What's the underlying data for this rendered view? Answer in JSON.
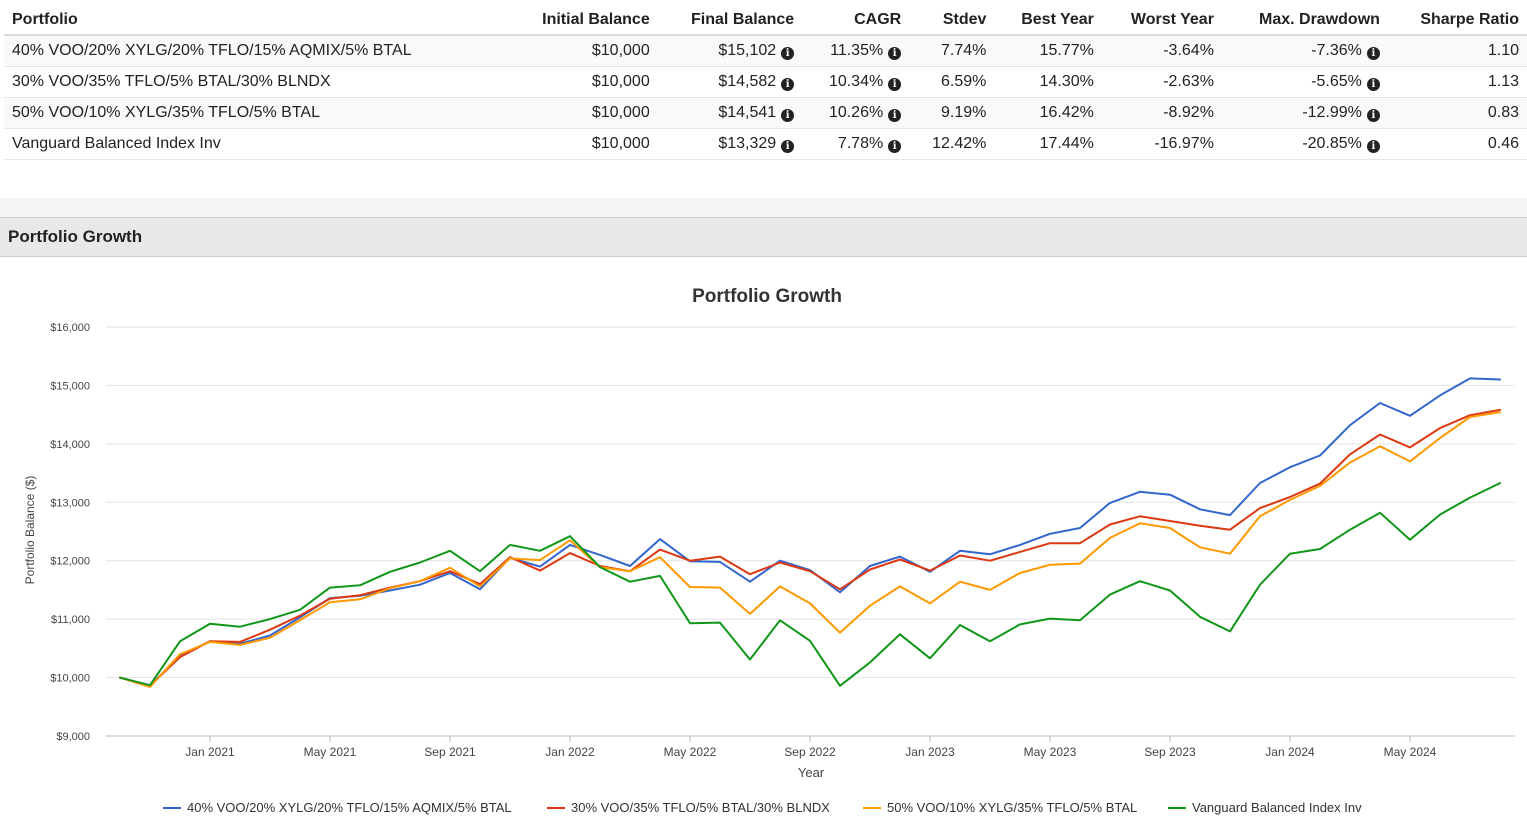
{
  "table": {
    "headers": [
      "Portfolio",
      "Initial Balance",
      "Final Balance",
      "CAGR",
      "Stdev",
      "Best Year",
      "Worst Year",
      "Max. Drawdown",
      "Sharpe Ratio"
    ],
    "rows": [
      {
        "portfolio": "40% VOO/20% XYLG/20% TFLO/15% AQMIX/5% BTAL",
        "initial": "$10,000",
        "final": "$15,102",
        "cagr": "11.35%",
        "stdev": "7.74%",
        "best": "15.77%",
        "worst": "-3.64%",
        "drawdown": "-7.36%",
        "sharpe": "1.10"
      },
      {
        "portfolio": "30% VOO/35% TFLO/5% BTAL/30% BLNDX",
        "initial": "$10,000",
        "final": "$14,582",
        "cagr": "10.34%",
        "stdev": "6.59%",
        "best": "14.30%",
        "worst": "-2.63%",
        "drawdown": "-5.65%",
        "sharpe": "1.13"
      },
      {
        "portfolio": "50% VOO/10% XYLG/35% TFLO/5% BTAL",
        "initial": "$10,000",
        "final": "$14,541",
        "cagr": "10.26%",
        "stdev": "9.19%",
        "best": "16.42%",
        "worst": "-8.92%",
        "drawdown": "-12.99%",
        "sharpe": "0.83"
      },
      {
        "portfolio": "Vanguard Balanced Index Inv",
        "initial": "$10,000",
        "final": "$13,329",
        "cagr": "7.78%",
        "stdev": "12.42%",
        "best": "17.44%",
        "worst": "-16.97%",
        "drawdown": "-20.85%",
        "sharpe": "0.46"
      }
    ],
    "info_icon": "info-circle-icon"
  },
  "section": {
    "title": "Portfolio Growth"
  },
  "chart_data": {
    "type": "line",
    "title": "Portfolio Growth",
    "xlabel": "Year",
    "ylabel": "Portfolio Balance ($)",
    "ylim": [
      9000,
      16000
    ],
    "yticks": [
      9000,
      10000,
      11000,
      12000,
      13000,
      14000,
      15000,
      16000
    ],
    "ytick_labels": [
      "$9,000",
      "$10,000",
      "$11,000",
      "$12,000",
      "$13,000",
      "$14,000",
      "$15,000",
      "$16,000"
    ],
    "x_ticks": [
      {
        "index": 3,
        "label": "Jan 2021"
      },
      {
        "index": 7,
        "label": "May 2021"
      },
      {
        "index": 11,
        "label": "Sep 2021"
      },
      {
        "index": 15,
        "label": "Jan 2022"
      },
      {
        "index": 19,
        "label": "May 2022"
      },
      {
        "index": 23,
        "label": "Sep 2022"
      },
      {
        "index": 27,
        "label": "Jan 2023"
      },
      {
        "index": 31,
        "label": "May 2023"
      },
      {
        "index": 35,
        "label": "Sep 2023"
      },
      {
        "index": 39,
        "label": "Jan 2024"
      },
      {
        "index": 43,
        "label": "May 2024"
      }
    ],
    "grid": true,
    "legend_position": "bottom",
    "series": [
      {
        "name": "40% VOO/20% XYLG/20% TFLO/15% AQMIX/5% BTAL",
        "color": "#3366cc",
        "values": [
          10000,
          9860,
          10380,
          10620,
          10580,
          10720,
          11030,
          11360,
          11400,
          11490,
          11590,
          11790,
          11510,
          12050,
          11900,
          12270,
          12100,
          11910,
          12370,
          11990,
          11980,
          11640,
          12000,
          11840,
          11460,
          11910,
          12070,
          11810,
          12170,
          12110,
          12270,
          12460,
          12560,
          12990,
          13180,
          13130,
          12880,
          12780,
          13330,
          13600,
          13800,
          14320,
          14700,
          14480,
          14830,
          15120,
          15102
        ]
      },
      {
        "name": "30% VOO/35% TFLO/5% BTAL/30% BLNDX",
        "color": "#dc3912",
        "values": [
          10000,
          9860,
          10350,
          10620,
          10610,
          10820,
          11060,
          11350,
          11410,
          11540,
          11650,
          11820,
          11600,
          12060,
          11830,
          12130,
          11910,
          11820,
          12190,
          12000,
          12070,
          11770,
          11970,
          11820,
          11510,
          11850,
          12020,
          11830,
          12090,
          12000,
          12150,
          12300,
          12300,
          12620,
          12760,
          12680,
          12600,
          12530,
          12900,
          13090,
          13320,
          13820,
          14160,
          13940,
          14270,
          14490,
          14582
        ]
      },
      {
        "name": "50% VOO/10% XYLG/35% TFLO/5% BTAL",
        "color": "#ff9900",
        "values": [
          10000,
          9840,
          10400,
          10610,
          10560,
          10680,
          10980,
          11290,
          11340,
          11530,
          11650,
          11880,
          11560,
          12040,
          12010,
          12350,
          11890,
          11820,
          12060,
          11550,
          11540,
          11090,
          11560,
          11270,
          10770,
          11230,
          11560,
          11270,
          11640,
          11500,
          11790,
          11930,
          11950,
          12390,
          12640,
          12560,
          12230,
          12120,
          12760,
          13040,
          13280,
          13680,
          13960,
          13700,
          14100,
          14460,
          14541
        ]
      },
      {
        "name": "Vanguard Balanced Index Inv",
        "color": "#109618",
        "values": [
          10000,
          9870,
          10620,
          10920,
          10870,
          11000,
          11160,
          11540,
          11580,
          11810,
          11970,
          12170,
          11820,
          12270,
          12170,
          12420,
          11890,
          11640,
          11740,
          10930,
          10940,
          10310,
          10980,
          10630,
          9860,
          10260,
          10740,
          10330,
          10900,
          10620,
          10910,
          11010,
          10980,
          11420,
          11650,
          11490,
          11040,
          10790,
          11590,
          12120,
          12200,
          12530,
          12820,
          12360,
          12790,
          13080,
          13329
        ]
      }
    ]
  }
}
